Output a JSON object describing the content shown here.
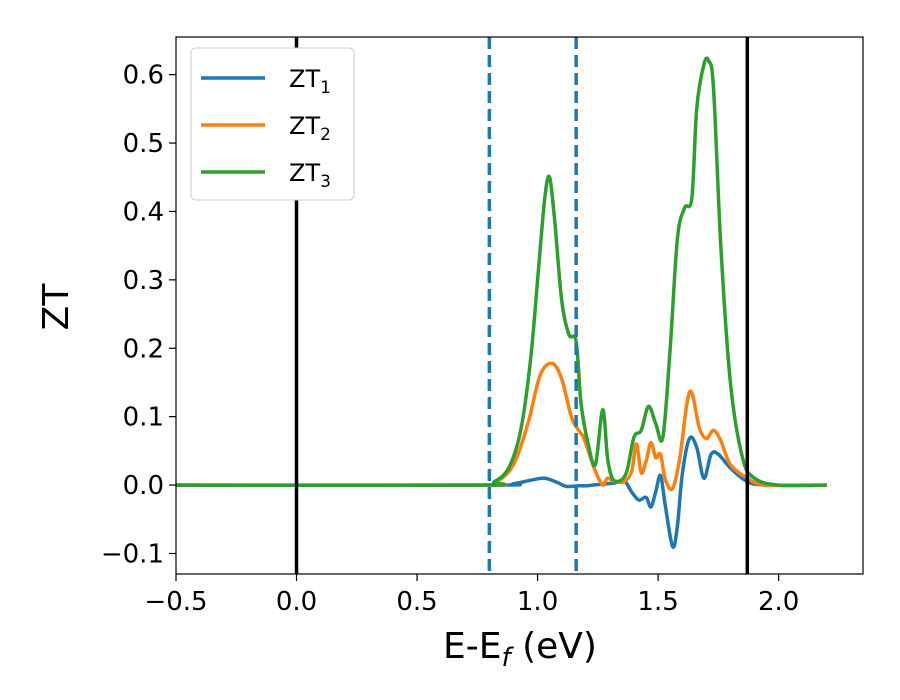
{
  "chart_data": {
    "type": "line",
    "xlabel": "E-E",
    "xlabel_sub": "f",
    "xlabel_unit": " (eV)",
    "ylabel": "ZT",
    "xlim": [
      -0.5,
      2.35
    ],
    "ylim": [
      -0.13,
      0.655
    ],
    "x_ticks": [
      -0.5,
      0.0,
      0.5,
      1.0,
      1.5,
      2.0
    ],
    "x_tick_labels": [
      "−0.5",
      "0.0",
      "0.5",
      "1.0",
      "1.5",
      "2.0"
    ],
    "y_ticks": [
      -0.1,
      0.0,
      0.1,
      0.2,
      0.3,
      0.4,
      0.5,
      0.6
    ],
    "y_tick_labels": [
      "−0.1",
      "0.0",
      "0.1",
      "0.2",
      "0.3",
      "0.4",
      "0.5",
      "0.6"
    ],
    "grid": false,
    "legend_position": "top-left",
    "vertical_lines": [
      {
        "x": 0.0,
        "style": "solid",
        "color": "#000000"
      },
      {
        "x": 1.87,
        "style": "solid",
        "color": "#000000"
      },
      {
        "x": 0.8,
        "style": "dashed",
        "color": "#1f77b4"
      },
      {
        "x": 1.16,
        "style": "dashed",
        "color": "#1f77b4"
      }
    ],
    "series": [
      {
        "name": "ZT",
        "name_sub": "1",
        "color": "#1f77b4",
        "x": [
          -0.5,
          0.8,
          0.9,
          0.97,
          1.03,
          1.08,
          1.12,
          1.17,
          1.2,
          1.26,
          1.32,
          1.36,
          1.39,
          1.42,
          1.45,
          1.47,
          1.49,
          1.51,
          1.53,
          1.56,
          1.58,
          1.6,
          1.63,
          1.66,
          1.69,
          1.72,
          1.75,
          1.8,
          1.87,
          1.95,
          2.2
        ],
        "y": [
          0.0,
          0.0,
          0.002,
          0.007,
          0.01,
          0.004,
          -0.002,
          -0.001,
          -0.001,
          0.001,
          0.003,
          0.006,
          -0.01,
          -0.022,
          -0.018,
          -0.032,
          -0.01,
          0.014,
          -0.03,
          -0.09,
          -0.06,
          0.015,
          0.068,
          0.055,
          0.01,
          0.045,
          0.045,
          0.025,
          0.005,
          0.0,
          0.0
        ]
      },
      {
        "name": "ZT",
        "name_sub": "2",
        "color": "#ff7f0e",
        "x": [
          -0.5,
          0.75,
          0.83,
          0.9,
          0.96,
          1.01,
          1.06,
          1.1,
          1.14,
          1.17,
          1.19,
          1.22,
          1.24,
          1.27,
          1.29,
          1.32,
          1.36,
          1.39,
          1.41,
          1.43,
          1.45,
          1.47,
          1.49,
          1.51,
          1.53,
          1.56,
          1.59,
          1.62,
          1.64,
          1.67,
          1.7,
          1.73,
          1.76,
          1.8,
          1.87,
          1.95,
          2.2
        ],
        "y": [
          0.0,
          0.0,
          0.005,
          0.03,
          0.09,
          0.16,
          0.178,
          0.155,
          0.1,
          0.08,
          0.07,
          0.04,
          0.02,
          0.0,
          0.01,
          0.005,
          0.005,
          0.02,
          0.06,
          0.018,
          0.035,
          0.062,
          0.04,
          0.045,
          0.008,
          -0.005,
          0.04,
          0.12,
          0.135,
          0.085,
          0.068,
          0.08,
          0.065,
          0.03,
          0.01,
          0.0,
          0.0
        ]
      },
      {
        "name": "ZT",
        "name_sub": "3",
        "color": "#2ca02c",
        "x": [
          -0.5,
          0.75,
          0.82,
          0.88,
          0.93,
          0.97,
          1.0,
          1.03,
          1.05,
          1.07,
          1.1,
          1.13,
          1.16,
          1.18,
          1.21,
          1.24,
          1.27,
          1.29,
          1.31,
          1.34,
          1.37,
          1.4,
          1.43,
          1.46,
          1.49,
          1.52,
          1.55,
          1.58,
          1.61,
          1.64,
          1.66,
          1.69,
          1.71,
          1.73,
          1.76,
          1.8,
          1.85,
          1.9,
          2.0,
          2.2
        ],
        "y": [
          0.0,
          0.0,
          0.005,
          0.025,
          0.08,
          0.18,
          0.3,
          0.42,
          0.45,
          0.39,
          0.27,
          0.22,
          0.21,
          0.12,
          0.06,
          0.03,
          0.11,
          0.04,
          0.01,
          0.006,
          0.02,
          0.07,
          0.08,
          0.115,
          0.09,
          0.07,
          0.2,
          0.36,
          0.405,
          0.42,
          0.55,
          0.615,
          0.62,
          0.58,
          0.35,
          0.15,
          0.04,
          0.01,
          0.0,
          0.0
        ]
      }
    ]
  }
}
